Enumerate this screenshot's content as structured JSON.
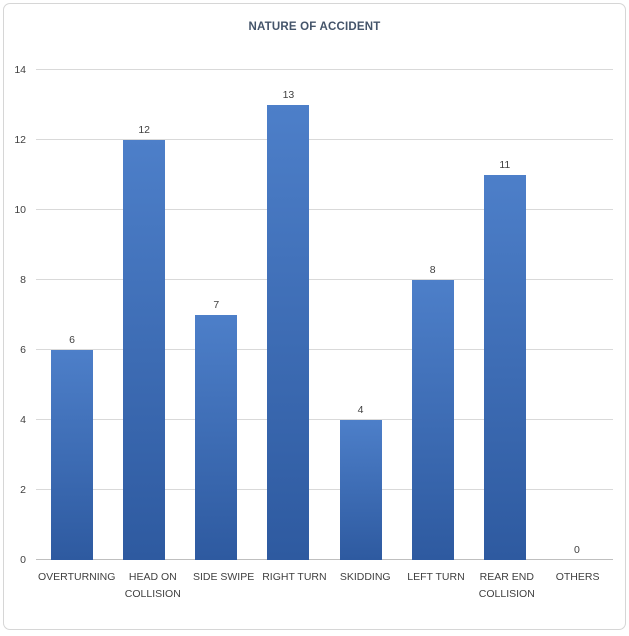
{
  "chart_data": {
    "type": "bar",
    "title": "NATURE OF ACCIDENT",
    "categories": [
      "OVERTURNING",
      "HEAD ON COLLISION",
      "SIDE SWIPE",
      "RIGHT TURN",
      "SKIDDING",
      "LEFT TURN",
      "REAR END COLLISION",
      "OTHERS"
    ],
    "values": [
      6,
      12,
      7,
      13,
      4,
      8,
      11,
      0
    ],
    "xlabel": "",
    "ylabel": "",
    "ylim": [
      0,
      14
    ],
    "ytick_step": 2,
    "grid": true,
    "legend": false,
    "colors": {
      "bar_top": "#4d7fc9",
      "bar_bottom": "#2e5aa0",
      "gridline": "#d9d9d9",
      "axis_line": "#bfbfbf",
      "axis_text": "#404040",
      "title_text": "#44546a",
      "frame_border": "#d6d6d6"
    }
  }
}
